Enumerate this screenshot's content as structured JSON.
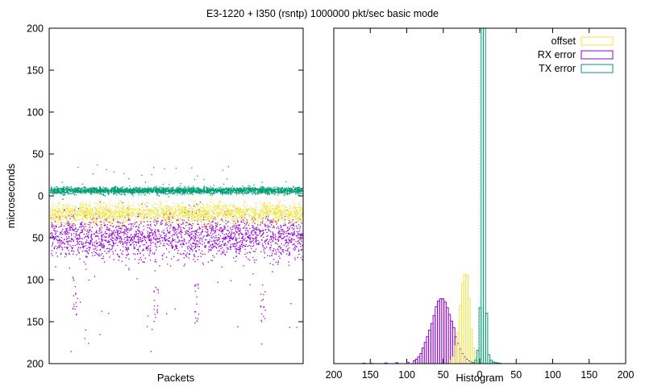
{
  "title": "E3-1220 + I350 (rsntp) 1000000 pkt/sec basic mode",
  "colors": {
    "offset": "#f0e442",
    "rx_error": "#9400d3",
    "tx_error": "#009e73"
  },
  "chart_data": [
    {
      "type": "scatter",
      "xlabel": "Packets",
      "ylabel": "microseconds",
      "ylim": [
        200,
        -200
      ],
      "yticks": [
        "200",
        "150",
        "100",
        "50",
        "0",
        "50",
        "100",
        "150",
        "200"
      ],
      "grid": false,
      "series": [
        {
          "key": "offset",
          "color": "#f0e442",
          "center": -20,
          "spread": 6,
          "points": 2200
        },
        {
          "key": "rx_error",
          "color": "#9400d3",
          "center": -48,
          "spread": 13,
          "points": 2200,
          "outlier_clusters": [
            [
              0.1,
              -120
            ],
            [
              0.42,
              -130
            ],
            [
              0.58,
              -125
            ],
            [
              0.84,
              -125
            ]
          ]
        },
        {
          "key": "tx_error",
          "color": "#009e73",
          "center": 7,
          "spread": 2,
          "points": 2600
        }
      ]
    },
    {
      "type": "histogram",
      "xlabel": "Histogram",
      "xlim": [
        -200,
        200
      ],
      "xticks": [
        "200",
        "150",
        "100",
        "50",
        "0",
        "50",
        "100",
        "150",
        "200"
      ],
      "legend_position": "top-right",
      "bin_width": 3,
      "series": [
        {
          "name": "offset",
          "color": "#f0e442",
          "bins": [
            [
              -40,
              3
            ],
            [
              -37,
              6
            ],
            [
              -34,
              16
            ],
            [
              -31,
              28
            ],
            [
              -28,
              52
            ],
            [
              -25,
              72
            ],
            [
              -22,
              80
            ],
            [
              -19,
              79
            ],
            [
              -16,
              58
            ],
            [
              -13,
              31
            ],
            [
              -10,
              14
            ],
            [
              -7,
              5
            ],
            [
              -4,
              2
            ]
          ]
        },
        {
          "name": "RX error",
          "color": "#9400d3",
          "bins": [
            [
              -160,
              0.4
            ],
            [
              -150,
              0.3
            ],
            [
              -130,
              0.6
            ],
            [
              -115,
              0.8
            ],
            [
              -100,
              1.2
            ],
            [
              -91,
              2.5
            ],
            [
              -88,
              4
            ],
            [
              -85,
              6
            ],
            [
              -82,
              9
            ],
            [
              -79,
              14
            ],
            [
              -76,
              19
            ],
            [
              -73,
              24
            ],
            [
              -70,
              30
            ],
            [
              -67,
              36
            ],
            [
              -64,
              43
            ],
            [
              -61,
              51
            ],
            [
              -58,
              56
            ],
            [
              -55,
              58
            ],
            [
              -52,
              58
            ],
            [
              -49,
              55
            ],
            [
              -46,
              50
            ],
            [
              -43,
              44
            ],
            [
              -40,
              38
            ],
            [
              -37,
              32
            ],
            [
              -34,
              24
            ],
            [
              -31,
              18
            ],
            [
              -28,
              13
            ],
            [
              -25,
              9
            ],
            [
              -22,
              6
            ],
            [
              -19,
              4
            ],
            [
              -16,
              2.5
            ],
            [
              -13,
              1.5
            ]
          ]
        },
        {
          "name": "TX error",
          "color": "#009e73",
          "bins": [
            [
              -10,
              1
            ],
            [
              -7,
              3
            ],
            [
              -4,
              12
            ],
            [
              -1,
              50
            ],
            [
              2,
              300
            ],
            [
              5,
              300
            ],
            [
              8,
              45
            ],
            [
              11,
              8
            ],
            [
              14,
              3
            ],
            [
              17,
              1.5
            ],
            [
              20,
              1
            ],
            [
              23,
              0.6
            ],
            [
              26,
              0.4
            ]
          ]
        }
      ]
    }
  ]
}
